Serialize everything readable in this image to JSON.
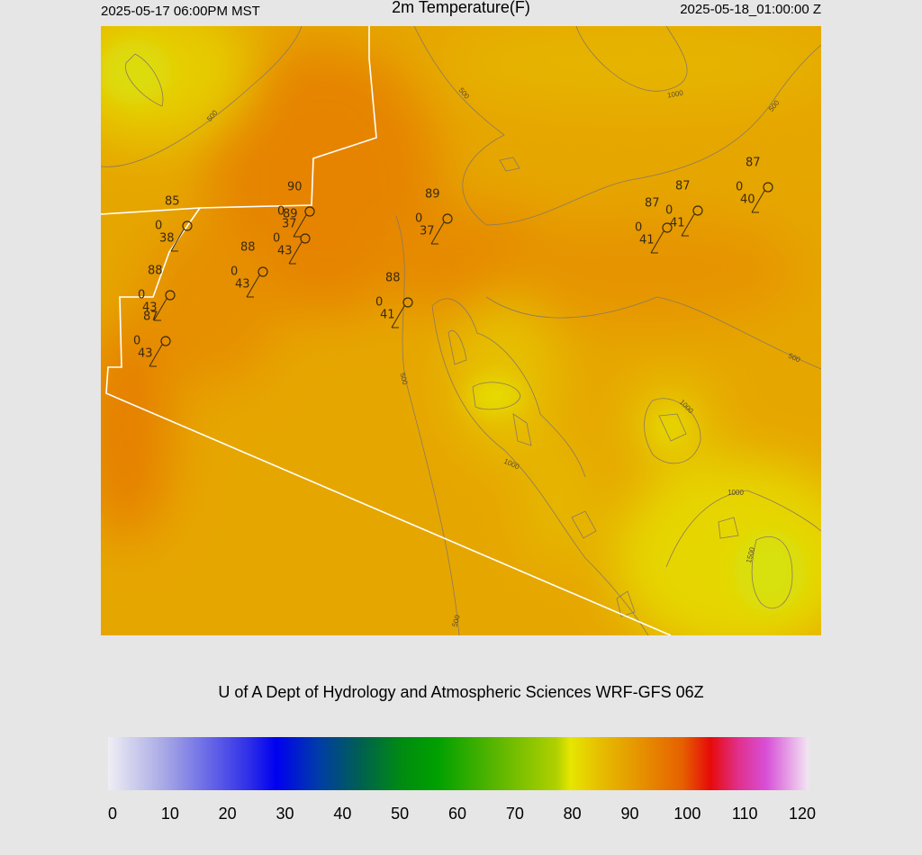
{
  "header": {
    "valid_local": "2025-05-17 06:00PM MST",
    "title": "2m Temperature(F)",
    "valid_utc": "2025-05-18_01:00:00 Z"
  },
  "map": {
    "stations": [
      {
        "temp": 85,
        "dew": 38,
        "code": "0"
      },
      {
        "temp": 90,
        "dew": 37,
        "code": "0"
      },
      {
        "temp": 89,
        "dew": 43,
        "code": "0"
      },
      {
        "temp": 88,
        "dew": 43,
        "code": "0"
      },
      {
        "temp": 88,
        "dew": 43,
        "code": "0"
      },
      {
        "temp": 87,
        "dew": 43,
        "code": "0"
      },
      {
        "temp": 89,
        "dew": 37,
        "code": "0"
      },
      {
        "temp": 88,
        "dew": 41,
        "code": "0"
      },
      {
        "temp": 87,
        "dew": 41,
        "code": "0"
      },
      {
        "temp": 87,
        "dew": 41,
        "code": "0"
      },
      {
        "temp": 87,
        "dew": 40,
        "code": "0"
      }
    ],
    "contour_labels": [
      "500",
      "500",
      "1000",
      "500",
      "500",
      "500",
      "1000",
      "1000",
      "1000",
      "1500",
      "500"
    ]
  },
  "credit": "U of A Dept of Hydrology and Atmospheric Sciences WRF-GFS 06Z",
  "colorbar": {
    "ticks": [
      0,
      10,
      20,
      30,
      40,
      50,
      60,
      70,
      80,
      90,
      100,
      110,
      120
    ]
  }
}
